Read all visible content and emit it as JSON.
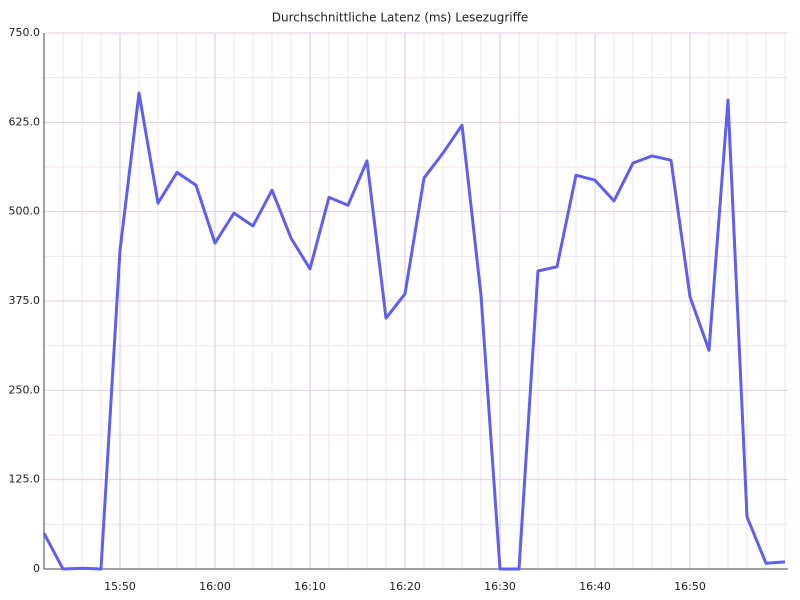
{
  "chart_data": {
    "type": "line",
    "title": "Durchschnittliche Latenz (ms) Lesezugriffe",
    "categories": [
      null,
      null,
      null,
      null,
      "15:50",
      null,
      null,
      null,
      null,
      "16:00",
      null,
      null,
      null,
      null,
      "16:10",
      null,
      null,
      null,
      null,
      "16:20",
      null,
      null,
      null,
      null,
      "16:30",
      null,
      null,
      null,
      null,
      "16:40",
      null,
      null,
      null,
      null,
      "16:50",
      null,
      null,
      null,
      null,
      null
    ],
    "series": [
      {
        "name": "Durchschnittliche Latenz (ms) Lesezugriffe",
        "color": "#5f5ff0",
        "values": [
          50,
          0,
          1,
          0,
          446,
          666,
          512,
          555,
          537,
          456,
          498,
          480,
          530,
          463,
          420,
          520,
          509,
          571,
          351,
          385,
          547,
          582,
          621,
          383,
          0,
          0,
          417,
          423,
          551,
          544,
          515,
          568,
          578,
          572,
          381,
          306,
          656,
          73,
          8,
          10
        ]
      }
    ],
    "ylim": [
      0,
      750
    ],
    "yticks": [
      0,
      {
        "value": 125,
        "label": "125.0"
      },
      {
        "value": 250,
        "label": "250.0"
      },
      {
        "value": 375,
        "label": "375.0"
      },
      {
        "value": 500,
        "label": "500.0"
      },
      {
        "value": 625,
        "label": "625.0"
      },
      {
        "value": 750,
        "label": "750.0"
      }
    ],
    "grid": true
  }
}
